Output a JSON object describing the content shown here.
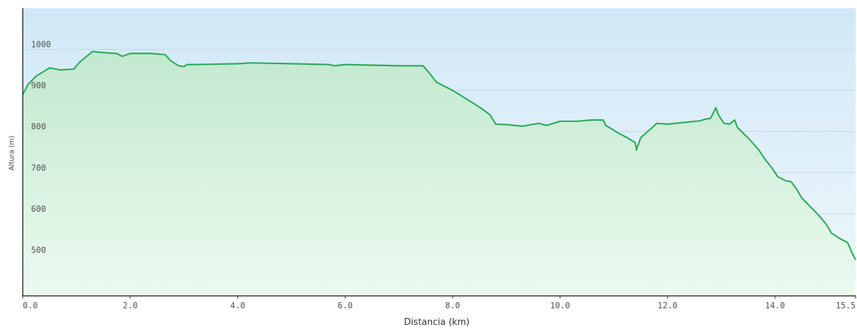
{
  "chart_data": {
    "type": "area",
    "xlabel": "Distancia  (km)",
    "ylabel": "Altura (m)",
    "xlim": [
      0,
      15.5
    ],
    "ylim": [
      400,
      1100
    ],
    "x_ticks": [
      {
        "value": 0.0,
        "label": "0.0"
      },
      {
        "value": 2.0,
        "label": "2.0"
      },
      {
        "value": 4.0,
        "label": "4.0"
      },
      {
        "value": 6.0,
        "label": "6.0"
      },
      {
        "value": 8.0,
        "label": "8.0"
      },
      {
        "value": 10.0,
        "label": "10.0"
      },
      {
        "value": 12.0,
        "label": "12.0"
      },
      {
        "value": 14.0,
        "label": "14.0"
      },
      {
        "value": 15.5,
        "label": "15.5"
      }
    ],
    "y_ticks": [
      {
        "value": 500,
        "label": "500"
      },
      {
        "value": 600,
        "label": "600"
      },
      {
        "value": 700,
        "label": "700"
      },
      {
        "value": 800,
        "label": "800"
      },
      {
        "value": 900,
        "label": "900"
      },
      {
        "value": 1000,
        "label": "1000"
      }
    ],
    "grid": true,
    "series": [
      {
        "color": "#2eaa5a",
        "x": [
          0.0,
          0.1,
          0.25,
          0.35,
          0.5,
          0.7,
          0.95,
          1.05,
          1.3,
          1.5,
          1.75,
          1.85,
          2.0,
          2.4,
          2.65,
          2.75,
          2.9,
          3.0,
          3.05,
          3.2,
          4.0,
          4.25,
          5.0,
          5.7,
          5.8,
          6.0,
          7.0,
          7.45,
          7.55,
          7.7,
          8.0,
          8.3,
          8.55,
          8.7,
          8.8,
          9.0,
          9.3,
          9.6,
          9.75,
          10.0,
          10.3,
          10.6,
          10.8,
          10.85,
          11.0,
          11.1,
          11.25,
          11.4,
          11.42,
          11.5,
          11.7,
          11.8,
          12.0,
          12.3,
          12.6,
          12.7,
          12.8,
          12.9,
          12.95,
          13.05,
          13.15,
          13.25,
          13.3,
          13.5,
          13.7,
          13.8,
          13.95,
          14.05,
          14.2,
          14.3,
          14.4,
          14.5,
          14.8,
          14.95,
          15.05,
          15.2,
          15.35,
          15.45,
          15.5
        ],
        "values": [
          890,
          915,
          935,
          943,
          955,
          950,
          952,
          968,
          995,
          992,
          990,
          983,
          990,
          990,
          987,
          973,
          960,
          958,
          963,
          963,
          965,
          967,
          965,
          963,
          960,
          963,
          960,
          960,
          945,
          920,
          900,
          876,
          855,
          840,
          818,
          817,
          813,
          820,
          815,
          825,
          825,
          828,
          828,
          815,
          803,
          795,
          785,
          773,
          755,
          785,
          808,
          820,
          818,
          822,
          826,
          830,
          832,
          858,
          840,
          820,
          818,
          828,
          810,
          784,
          755,
          735,
          710,
          690,
          680,
          678,
          660,
          638,
          598,
          575,
          553,
          540,
          530,
          500,
          488
        ]
      }
    ]
  }
}
